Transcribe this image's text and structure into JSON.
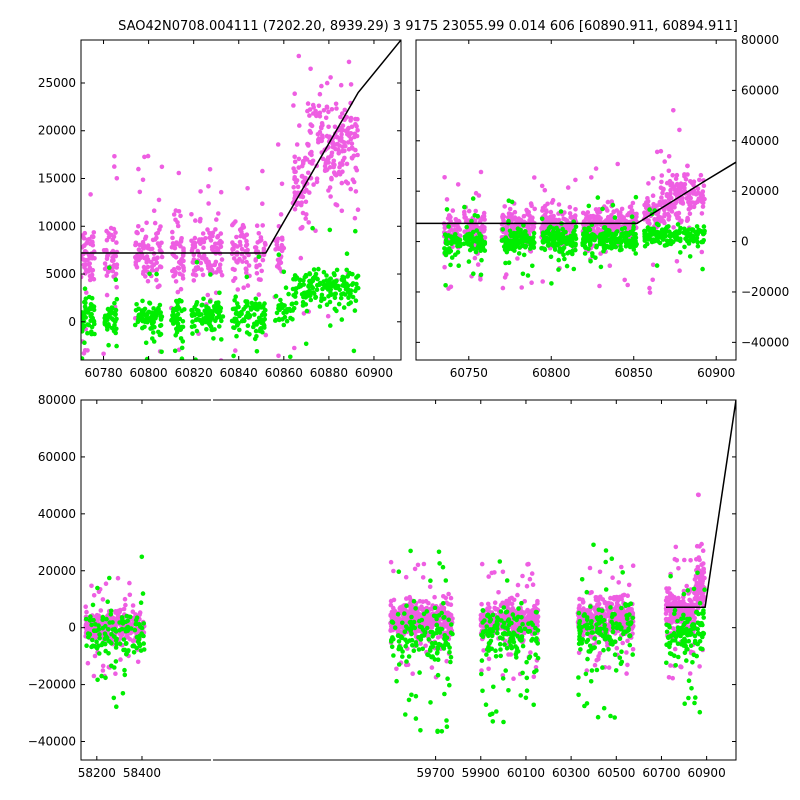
{
  "title": "SAO42N0708.004111 (7202.20, 8939.29)  3 9175 23055.99 0.014 606 [60890.911, 60894.911]",
  "colors": {
    "series_a": "#ee5ee2",
    "series_b": "#00ee00",
    "model": "#000000",
    "axes": "#000000"
  },
  "chart_data": [
    {
      "type": "scatter",
      "panel": "top-left",
      "xlim": [
        60770,
        60912
      ],
      "ylim": [
        -4000,
        29500
      ],
      "yaxis_side": "left",
      "xticks": [
        "60780",
        "60800",
        "60820",
        "60840",
        "60860",
        "60880",
        "60900"
      ],
      "xtick_values": [
        60780,
        60800,
        60820,
        60840,
        60860,
        60880,
        60900
      ],
      "yticks": [
        "0",
        "5000",
        "10000",
        "15000",
        "20000",
        "25000"
      ],
      "ytick_values": [
        0,
        5000,
        10000,
        15000,
        20000,
        25000
      ],
      "series": [
        {
          "color": "#ee5ee2",
          "clusters": [
            {
              "x": [
                60770,
                60776
              ],
              "y": 7300,
              "spread": 1600,
              "n": 50,
              "outliers": 8
            },
            {
              "x": [
                60780,
                60786
              ],
              "y": 7000,
              "spread": 1500,
              "n": 45,
              "outliers": 6
            },
            {
              "x": [
                60794,
                60806
              ],
              "y": 7100,
              "spread": 1500,
              "n": 85,
              "outliers": 10
            },
            {
              "x": [
                60810,
                60816
              ],
              "y": 7000,
              "spread": 1600,
              "n": 45,
              "outliers": 8
            },
            {
              "x": [
                60819,
                60833
              ],
              "y": 6900,
              "spread": 1600,
              "n": 95,
              "outliers": 10
            },
            {
              "x": [
                60837,
                60845
              ],
              "y": 7000,
              "spread": 1500,
              "n": 55,
              "outliers": 6
            },
            {
              "x": [
                60847,
                60852
              ],
              "y": 7000,
              "spread": 1400,
              "n": 30,
              "outliers": 6
            },
            {
              "x": [
                60856,
                60860
              ],
              "y": 7800,
              "spread": 1800,
              "n": 28,
              "outliers": 4
            },
            {
              "x": [
                60864,
                60870
              ],
              "y": 13500,
              "spread": 2400,
              "n": 55,
              "outliers": 6
            },
            {
              "x": [
                60870,
                60888
              ],
              "y": 18500,
              "spread": 2600,
              "n": 150,
              "outliers": 10
            },
            {
              "x": [
                60888,
                60893
              ],
              "y": 19000,
              "spread": 2600,
              "n": 40,
              "outliers": 4
            }
          ]
        },
        {
          "color": "#00ee00",
          "clusters": [
            {
              "x": [
                60770,
                60776
              ],
              "y": 600,
              "spread": 900,
              "n": 50,
              "outliers": 6
            },
            {
              "x": [
                60780,
                60786
              ],
              "y": 400,
              "spread": 900,
              "n": 40,
              "outliers": 5
            },
            {
              "x": [
                60794,
                60806
              ],
              "y": 500,
              "spread": 900,
              "n": 80,
              "outliers": 6
            },
            {
              "x": [
                60810,
                60816
              ],
              "y": 300,
              "spread": 900,
              "n": 40,
              "outliers": 5
            },
            {
              "x": [
                60819,
                60833
              ],
              "y": 400,
              "spread": 900,
              "n": 90,
              "outliers": 6
            },
            {
              "x": [
                60837,
                60852
              ],
              "y": 500,
              "spread": 1000,
              "n": 95,
              "outliers": 6
            },
            {
              "x": [
                60856,
                60864
              ],
              "y": 1300,
              "spread": 1000,
              "n": 35,
              "outliers": 4
            },
            {
              "x": [
                60864,
                60888
              ],
              "y": 3500,
              "spread": 900,
              "n": 140,
              "outliers": 6
            },
            {
              "x": [
                60888,
                60893
              ],
              "y": 3400,
              "spread": 1000,
              "n": 25,
              "outliers": 3
            }
          ]
        }
      ],
      "model_line": {
        "x": [
          60770,
          60852,
          60893,
          60912
        ],
        "y": [
          7200,
          7200,
          24000,
          29500
        ]
      }
    },
    {
      "type": "scatter",
      "panel": "top-right",
      "xlim": [
        60718,
        60912
      ],
      "ylim": [
        -47000,
        80000
      ],
      "yaxis_side": "right",
      "xticks": [
        "60750",
        "60800",
        "60850",
        "60900"
      ],
      "xtick_values": [
        60750,
        60800,
        60850,
        60900
      ],
      "yticks": [
        "−40000",
        "−20000",
        "0",
        "20000",
        "40000",
        "60000",
        "80000"
      ],
      "ytick_values": [
        -40000,
        -20000,
        0,
        20000,
        40000,
        60000,
        80000
      ],
      "series": [
        {
          "color": "#ee5ee2",
          "clusters": [
            {
              "x": [
                60735,
                60745
              ],
              "y": 5000,
              "spread": 3500,
              "n": 50,
              "outliers": 6
            },
            {
              "x": [
                60747,
                60760
              ],
              "y": 5500,
              "spread": 3500,
              "n": 80,
              "outliers": 10
            },
            {
              "x": [
                60770,
                60790
              ],
              "y": 6000,
              "spread": 3500,
              "n": 130,
              "outliers": 12
            },
            {
              "x": [
                60794,
                60815
              ],
              "y": 6000,
              "spread": 3500,
              "n": 160,
              "outliers": 14
            },
            {
              "x": [
                60819,
                60852
              ],
              "y": 6500,
              "spread": 3500,
              "n": 220,
              "outliers": 16
            },
            {
              "x": [
                60856,
                60866
              ],
              "y": 11000,
              "spread": 4500,
              "n": 60,
              "outliers": 6
            },
            {
              "x": [
                60866,
                60893
              ],
              "y": 17500,
              "spread": 5000,
              "n": 170,
              "outliers": 8
            }
          ]
        },
        {
          "color": "#00ee00",
          "clusters": [
            {
              "x": [
                60735,
                60745
              ],
              "y": 0,
              "spread": 2500,
              "n": 40,
              "outliers": 6
            },
            {
              "x": [
                60747,
                60760
              ],
              "y": 500,
              "spread": 2500,
              "n": 60,
              "outliers": 8
            },
            {
              "x": [
                60770,
                60790
              ],
              "y": 500,
              "spread": 2500,
              "n": 100,
              "outliers": 8
            },
            {
              "x": [
                60794,
                60815
              ],
              "y": 600,
              "spread": 2500,
              "n": 120,
              "outliers": 8
            },
            {
              "x": [
                60819,
                60852
              ],
              "y": 600,
              "spread": 2500,
              "n": 170,
              "outliers": 10
            },
            {
              "x": [
                60856,
                60893
              ],
              "y": 2500,
              "spread": 2000,
              "n": 150,
              "outliers": 8
            }
          ]
        }
      ],
      "model_line": {
        "x": [
          60718,
          60852,
          60893,
          60912
        ],
        "y": [
          7200,
          7200,
          24000,
          31500
        ]
      }
    },
    {
      "type": "scatter",
      "panel": "bottom",
      "xlim": [
        58130,
        61030
      ],
      "ylim": [
        -46500,
        80000
      ],
      "yaxis_side": "left",
      "xticks": [
        "58200",
        "58400",
        "59700",
        "59900",
        "60100",
        "60300",
        "60500",
        "60700",
        "60900"
      ],
      "xtick_values": [
        58200,
        58400,
        59700,
        59900,
        60100,
        60300,
        60500,
        60700,
        60900
      ],
      "yticks": [
        "−40000",
        "−20000",
        "0",
        "20000",
        "40000",
        "60000",
        "80000"
      ],
      "ytick_values": [
        -40000,
        -20000,
        0,
        20000,
        40000,
        60000,
        80000
      ],
      "series": [
        {
          "color": "#ee5ee2",
          "clusters": [
            {
              "x": [
                58150,
                58410
              ],
              "y": 0,
              "spread": 2500,
              "n": 320,
              "outliers": 30
            },
            {
              "x": [
                59500,
                59775
              ],
              "y": 3000,
              "spread": 3000,
              "n": 380,
              "outliers": 35
            },
            {
              "x": [
                59900,
                60155
              ],
              "y": 2500,
              "spread": 3000,
              "n": 380,
              "outliers": 35
            },
            {
              "x": [
                60330,
                60575
              ],
              "y": 3000,
              "spread": 3000,
              "n": 380,
              "outliers": 35
            },
            {
              "x": [
                60720,
                60852
              ],
              "y": 6000,
              "spread": 3500,
              "n": 200,
              "outliers": 25
            },
            {
              "x": [
                60852,
                60893
              ],
              "y": 16000,
              "spread": 4500,
              "n": 80,
              "outliers": 6
            }
          ]
        },
        {
          "color": "#00ee00",
          "clusters": [
            {
              "x": [
                58150,
                58410
              ],
              "y": -3000,
              "spread": 4000,
              "n": 110,
              "outliers": 18
            },
            {
              "x": [
                59500,
                59775
              ],
              "y": -2000,
              "spread": 5000,
              "n": 130,
              "outliers": 25
            },
            {
              "x": [
                59900,
                60155
              ],
              "y": -2500,
              "spread": 4500,
              "n": 130,
              "outliers": 22
            },
            {
              "x": [
                60330,
                60575
              ],
              "y": -1500,
              "spread": 4500,
              "n": 130,
              "outliers": 22
            },
            {
              "x": [
                60720,
                60893
              ],
              "y": -2000,
              "spread": 4000,
              "n": 110,
              "outliers": 16
            }
          ]
        }
      ],
      "model_line": {
        "x": [
          60720,
          60852,
          60893,
          61030
        ],
        "y": [
          7200,
          7200,
          7200,
          80000
        ]
      },
      "axis_breaks": [
        {
          "after_tick": "58400",
          "before_tick": "59700"
        }
      ]
    }
  ]
}
